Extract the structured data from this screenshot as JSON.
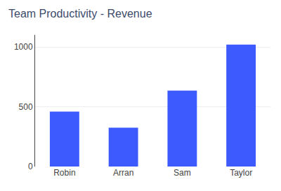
{
  "chart_data": {
    "type": "bar",
    "title": "Team Productivity - Revenue",
    "categories": [
      "Robin",
      "Arran",
      "Sam",
      "Taylor"
    ],
    "values": [
      460,
      325,
      635,
      1020
    ],
    "color": "#3D5AFE",
    "ylim": [
      0,
      1100
    ],
    "yticks": [
      0,
      500,
      1000
    ],
    "grid": true
  }
}
